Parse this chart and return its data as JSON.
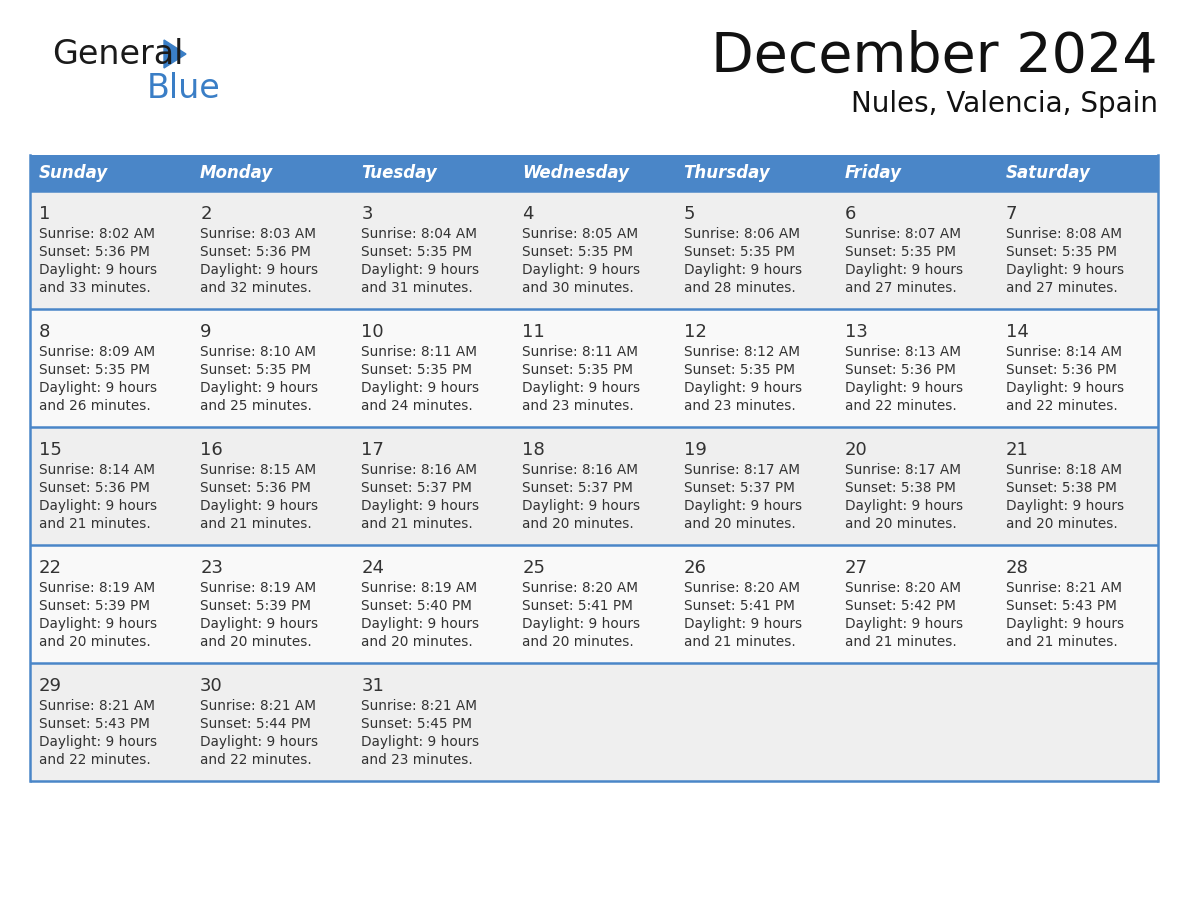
{
  "title": "December 2024",
  "subtitle": "Nules, Valencia, Spain",
  "header_bg_color": "#4A86C8",
  "header_text_color": "#FFFFFF",
  "day_names": [
    "Sunday",
    "Monday",
    "Tuesday",
    "Wednesday",
    "Thursday",
    "Friday",
    "Saturday"
  ],
  "cell_bg_odd": "#EFEFEF",
  "cell_bg_even": "#F9F9F9",
  "border_color": "#4A86C8",
  "text_color": "#333333",
  "logo_general_color": "#1a1a1a",
  "logo_blue_color": "#3A7EC6",
  "days": [
    {
      "day": 1,
      "col": 0,
      "row": 0,
      "sunrise": "8:02 AM",
      "sunset": "5:36 PM",
      "daylight_hours": 9,
      "daylight_minutes": 33
    },
    {
      "day": 2,
      "col": 1,
      "row": 0,
      "sunrise": "8:03 AM",
      "sunset": "5:36 PM",
      "daylight_hours": 9,
      "daylight_minutes": 32
    },
    {
      "day": 3,
      "col": 2,
      "row": 0,
      "sunrise": "8:04 AM",
      "sunset": "5:35 PM",
      "daylight_hours": 9,
      "daylight_minutes": 31
    },
    {
      "day": 4,
      "col": 3,
      "row": 0,
      "sunrise": "8:05 AM",
      "sunset": "5:35 PM",
      "daylight_hours": 9,
      "daylight_minutes": 30
    },
    {
      "day": 5,
      "col": 4,
      "row": 0,
      "sunrise": "8:06 AM",
      "sunset": "5:35 PM",
      "daylight_hours": 9,
      "daylight_minutes": 28
    },
    {
      "day": 6,
      "col": 5,
      "row": 0,
      "sunrise": "8:07 AM",
      "sunset": "5:35 PM",
      "daylight_hours": 9,
      "daylight_minutes": 27
    },
    {
      "day": 7,
      "col": 6,
      "row": 0,
      "sunrise": "8:08 AM",
      "sunset": "5:35 PM",
      "daylight_hours": 9,
      "daylight_minutes": 27
    },
    {
      "day": 8,
      "col": 0,
      "row": 1,
      "sunrise": "8:09 AM",
      "sunset": "5:35 PM",
      "daylight_hours": 9,
      "daylight_minutes": 26
    },
    {
      "day": 9,
      "col": 1,
      "row": 1,
      "sunrise": "8:10 AM",
      "sunset": "5:35 PM",
      "daylight_hours": 9,
      "daylight_minutes": 25
    },
    {
      "day": 10,
      "col": 2,
      "row": 1,
      "sunrise": "8:11 AM",
      "sunset": "5:35 PM",
      "daylight_hours": 9,
      "daylight_minutes": 24
    },
    {
      "day": 11,
      "col": 3,
      "row": 1,
      "sunrise": "8:11 AM",
      "sunset": "5:35 PM",
      "daylight_hours": 9,
      "daylight_minutes": 23
    },
    {
      "day": 12,
      "col": 4,
      "row": 1,
      "sunrise": "8:12 AM",
      "sunset": "5:35 PM",
      "daylight_hours": 9,
      "daylight_minutes": 23
    },
    {
      "day": 13,
      "col": 5,
      "row": 1,
      "sunrise": "8:13 AM",
      "sunset": "5:36 PM",
      "daylight_hours": 9,
      "daylight_minutes": 22
    },
    {
      "day": 14,
      "col": 6,
      "row": 1,
      "sunrise": "8:14 AM",
      "sunset": "5:36 PM",
      "daylight_hours": 9,
      "daylight_minutes": 22
    },
    {
      "day": 15,
      "col": 0,
      "row": 2,
      "sunrise": "8:14 AM",
      "sunset": "5:36 PM",
      "daylight_hours": 9,
      "daylight_minutes": 21
    },
    {
      "day": 16,
      "col": 1,
      "row": 2,
      "sunrise": "8:15 AM",
      "sunset": "5:36 PM",
      "daylight_hours": 9,
      "daylight_minutes": 21
    },
    {
      "day": 17,
      "col": 2,
      "row": 2,
      "sunrise": "8:16 AM",
      "sunset": "5:37 PM",
      "daylight_hours": 9,
      "daylight_minutes": 21
    },
    {
      "day": 18,
      "col": 3,
      "row": 2,
      "sunrise": "8:16 AM",
      "sunset": "5:37 PM",
      "daylight_hours": 9,
      "daylight_minutes": 20
    },
    {
      "day": 19,
      "col": 4,
      "row": 2,
      "sunrise": "8:17 AM",
      "sunset": "5:37 PM",
      "daylight_hours": 9,
      "daylight_minutes": 20
    },
    {
      "day": 20,
      "col": 5,
      "row": 2,
      "sunrise": "8:17 AM",
      "sunset": "5:38 PM",
      "daylight_hours": 9,
      "daylight_minutes": 20
    },
    {
      "day": 21,
      "col": 6,
      "row": 2,
      "sunrise": "8:18 AM",
      "sunset": "5:38 PM",
      "daylight_hours": 9,
      "daylight_minutes": 20
    },
    {
      "day": 22,
      "col": 0,
      "row": 3,
      "sunrise": "8:19 AM",
      "sunset": "5:39 PM",
      "daylight_hours": 9,
      "daylight_minutes": 20
    },
    {
      "day": 23,
      "col": 1,
      "row": 3,
      "sunrise": "8:19 AM",
      "sunset": "5:39 PM",
      "daylight_hours": 9,
      "daylight_minutes": 20
    },
    {
      "day": 24,
      "col": 2,
      "row": 3,
      "sunrise": "8:19 AM",
      "sunset": "5:40 PM",
      "daylight_hours": 9,
      "daylight_minutes": 20
    },
    {
      "day": 25,
      "col": 3,
      "row": 3,
      "sunrise": "8:20 AM",
      "sunset": "5:41 PM",
      "daylight_hours": 9,
      "daylight_minutes": 20
    },
    {
      "day": 26,
      "col": 4,
      "row": 3,
      "sunrise": "8:20 AM",
      "sunset": "5:41 PM",
      "daylight_hours": 9,
      "daylight_minutes": 21
    },
    {
      "day": 27,
      "col": 5,
      "row": 3,
      "sunrise": "8:20 AM",
      "sunset": "5:42 PM",
      "daylight_hours": 9,
      "daylight_minutes": 21
    },
    {
      "day": 28,
      "col": 6,
      "row": 3,
      "sunrise": "8:21 AM",
      "sunset": "5:43 PM",
      "daylight_hours": 9,
      "daylight_minutes": 21
    },
    {
      "day": 29,
      "col": 0,
      "row": 4,
      "sunrise": "8:21 AM",
      "sunset": "5:43 PM",
      "daylight_hours": 9,
      "daylight_minutes": 22
    },
    {
      "day": 30,
      "col": 1,
      "row": 4,
      "sunrise": "8:21 AM",
      "sunset": "5:44 PM",
      "daylight_hours": 9,
      "daylight_minutes": 22
    },
    {
      "day": 31,
      "col": 2,
      "row": 4,
      "sunrise": "8:21 AM",
      "sunset": "5:45 PM",
      "daylight_hours": 9,
      "daylight_minutes": 23
    }
  ]
}
